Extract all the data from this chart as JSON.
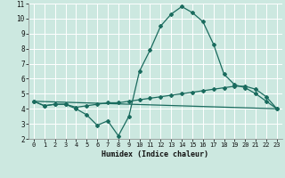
{
  "xlabel": "Humidex (Indice chaleur)",
  "xlim": [
    -0.5,
    23.5
  ],
  "ylim": [
    2,
    11
  ],
  "yticks": [
    2,
    3,
    4,
    5,
    6,
    7,
    8,
    9,
    10,
    11
  ],
  "xticks": [
    0,
    1,
    2,
    3,
    4,
    5,
    6,
    7,
    8,
    9,
    10,
    11,
    12,
    13,
    14,
    15,
    16,
    17,
    18,
    19,
    20,
    21,
    22,
    23
  ],
  "background_color": "#cce8e0",
  "grid_color": "#ffffff",
  "line_color": "#1a6b5e",
  "line1_x": [
    0,
    1,
    2,
    3,
    4,
    5,
    6,
    7,
    8,
    9,
    10,
    11,
    12,
    13,
    14,
    15,
    16,
    17,
    18,
    19,
    20,
    21,
    22,
    23
  ],
  "line1_y": [
    4.5,
    4.2,
    4.3,
    4.3,
    4.0,
    3.6,
    2.9,
    3.2,
    2.2,
    3.5,
    6.5,
    7.9,
    9.5,
    10.3,
    10.8,
    10.4,
    9.8,
    8.3,
    6.3,
    5.6,
    5.4,
    5.0,
    4.5,
    4.0
  ],
  "line2_x": [
    0,
    1,
    2,
    3,
    4,
    5,
    6,
    7,
    8,
    9,
    10,
    11,
    12,
    13,
    14,
    15,
    16,
    17,
    18,
    19,
    20,
    21,
    22,
    23
  ],
  "line2_y": [
    4.5,
    4.2,
    4.3,
    4.3,
    4.1,
    4.2,
    4.3,
    4.4,
    4.4,
    4.5,
    4.6,
    4.7,
    4.8,
    4.9,
    5.0,
    5.1,
    5.2,
    5.3,
    5.4,
    5.5,
    5.5,
    5.3,
    4.8,
    4.0
  ],
  "line3_x": [
    0,
    23
  ],
  "line3_y": [
    4.5,
    4.0
  ]
}
